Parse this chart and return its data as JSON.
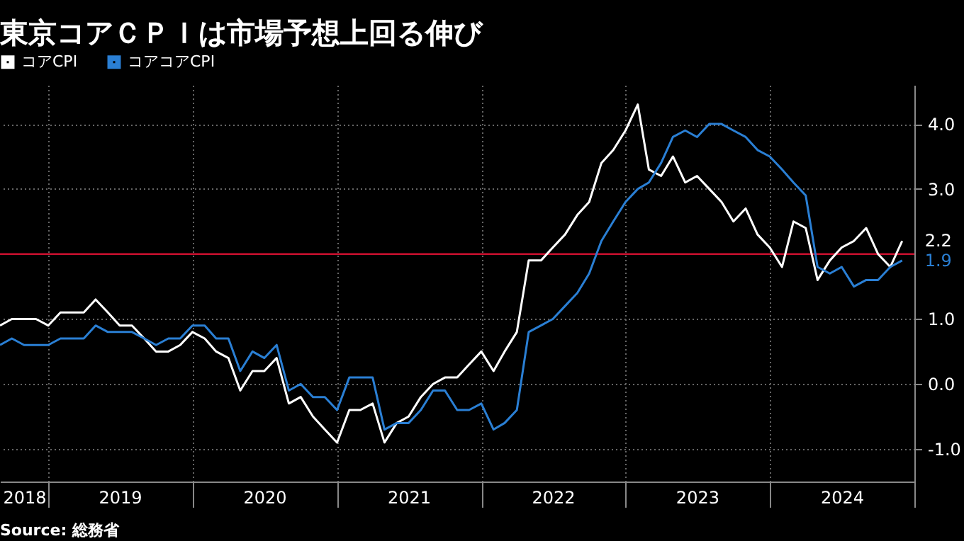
{
  "chart_data": {
    "type": "line",
    "title": "東京コアＣＰＩは市場予想上回る伸び",
    "annotations": [
      "Source: 総務省"
    ],
    "legend": "top left",
    "grid": true,
    "marker": "none",
    "line_style": "solid",
    "x": [
      "2018-08-31",
      "2018-09-30",
      "2018-10-31",
      "2018-11-30",
      "2018-12-31",
      "2019-01-31",
      "2019-02-28",
      "2019-03-31",
      "2019-04-30",
      "2019-05-31",
      "2019-06-30",
      "2019-07-31",
      "2019-08-31",
      "2019-09-30",
      "2019-10-31",
      "2019-11-30",
      "2019-12-31",
      "2020-01-31",
      "2020-02-29",
      "2020-03-31",
      "2020-04-30",
      "2020-05-31",
      "2020-06-30",
      "2020-07-31",
      "2020-08-31",
      "2020-09-30",
      "2020-10-31",
      "2020-11-30",
      "2020-12-31",
      "2021-01-31",
      "2021-02-28",
      "2021-03-31",
      "2021-04-30",
      "2021-05-31",
      "2021-06-30",
      "2021-07-31",
      "2021-08-31",
      "2021-09-30",
      "2021-10-31",
      "2021-11-30",
      "2021-12-31",
      "2022-01-31",
      "2022-02-28",
      "2022-03-31",
      "2022-04-30",
      "2022-05-31",
      "2022-06-30",
      "2022-07-31",
      "2022-08-31",
      "2022-09-30",
      "2022-10-31",
      "2022-11-30",
      "2022-12-31",
      "2023-01-31",
      "2023-02-28",
      "2023-03-31",
      "2023-04-30",
      "2023-05-31",
      "2023-06-30",
      "2023-07-31",
      "2023-08-31",
      "2023-09-30",
      "2023-10-31",
      "2023-11-30",
      "2023-12-31",
      "2024-01-31",
      "2024-02-29",
      "2024-03-31",
      "2024-04-30",
      "2024-05-31",
      "2024-06-30",
      "2024-07-31",
      "2024-08-31",
      "2024-09-30",
      "2024-10-31",
      "2024-11-30"
    ],
    "series": [
      {
        "name": "コアCPI",
        "color": "#ffffff",
        "values": [
          0.9,
          1.0,
          1.0,
          1.0,
          0.9,
          1.1,
          1.1,
          1.1,
          1.3,
          1.1,
          0.9,
          0.9,
          0.7,
          0.5,
          0.5,
          0.6,
          0.8,
          0.7,
          0.5,
          0.4,
          -0.1,
          0.2,
          0.2,
          0.4,
          -0.3,
          -0.2,
          -0.5,
          -0.7,
          -0.9,
          -0.4,
          -0.4,
          -0.3,
          -0.9,
          -0.6,
          -0.5,
          -0.2,
          0.0,
          0.1,
          0.1,
          0.3,
          0.5,
          0.2,
          0.5,
          0.8,
          1.9,
          1.9,
          2.1,
          2.3,
          2.6,
          2.8,
          3.4,
          3.6,
          3.9,
          4.3,
          3.3,
          3.2,
          3.5,
          3.1,
          3.2,
          3.0,
          2.8,
          2.5,
          2.7,
          2.3,
          2.1,
          1.8,
          2.5,
          2.4,
          1.6,
          1.9,
          2.1,
          2.2,
          2.4,
          2.0,
          1.8,
          2.2
        ],
        "value_labels": [
          null,
          null,
          null,
          null,
          null,
          null,
          null,
          null,
          null,
          null,
          null,
          null,
          null,
          null,
          null,
          null,
          null,
          null,
          null,
          null,
          null,
          null,
          null,
          null,
          null,
          null,
          null,
          null,
          null,
          null,
          null,
          null,
          null,
          null,
          null,
          null,
          null,
          null,
          null,
          null,
          null,
          null,
          null,
          null,
          null,
          null,
          null,
          null,
          null,
          null,
          null,
          null,
          null,
          null,
          null,
          null,
          null,
          null,
          null,
          null,
          null,
          null,
          null,
          null,
          null,
          null,
          null,
          null,
          null,
          null,
          null,
          null,
          null,
          null,
          null,
          "2.2"
        ]
      },
      {
        "name": "コアコアCPI",
        "color": "#2a7fd4",
        "values": [
          0.6,
          0.7,
          0.6,
          0.6,
          0.6,
          0.7,
          0.7,
          0.7,
          0.9,
          0.8,
          0.8,
          0.8,
          0.7,
          0.6,
          0.7,
          0.7,
          0.9,
          0.9,
          0.7,
          0.7,
          0.2,
          0.5,
          0.4,
          0.6,
          -0.1,
          0.0,
          -0.2,
          -0.2,
          -0.4,
          0.1,
          0.1,
          0.1,
          -0.7,
          -0.6,
          -0.6,
          -0.4,
          -0.1,
          -0.1,
          -0.4,
          -0.4,
          -0.3,
          -0.7,
          -0.6,
          -0.4,
          0.8,
          0.9,
          1.0,
          1.2,
          1.4,
          1.7,
          2.2,
          2.5,
          2.8,
          3.0,
          3.1,
          3.4,
          3.8,
          3.9,
          3.8,
          4.0,
          4.0,
          3.9,
          3.8,
          3.6,
          3.5,
          3.3,
          3.1,
          2.9,
          1.8,
          1.7,
          1.8,
          1.5,
          1.6,
          1.6,
          1.8,
          1.9
        ],
        "value_labels": [
          null,
          null,
          null,
          null,
          null,
          null,
          null,
          null,
          null,
          null,
          null,
          null,
          null,
          null,
          null,
          null,
          null,
          null,
          null,
          null,
          null,
          null,
          null,
          null,
          null,
          null,
          null,
          null,
          null,
          null,
          null,
          null,
          null,
          null,
          null,
          null,
          null,
          null,
          null,
          null,
          null,
          null,
          null,
          null,
          null,
          null,
          null,
          null,
          null,
          null,
          null,
          null,
          null,
          null,
          null,
          null,
          null,
          null,
          null,
          null,
          null,
          null,
          null,
          null,
          null,
          null,
          null,
          null,
          null,
          null,
          null,
          null,
          null,
          null,
          null,
          "1.9"
        ]
      }
    ],
    "xlim": [
      "2018-08-31",
      "2024-12-31"
    ],
    "xticks": [
      {
        "value": "2018-12-31",
        "label": null
      },
      {
        "value": "2019-12-31",
        "label": null
      },
      {
        "value": "2020-12-31",
        "label": null
      },
      {
        "value": "2021-12-31",
        "label": null
      },
      {
        "value": "2022-12-31",
        "label": null
      },
      {
        "value": "2023-12-31",
        "label": null
      },
      {
        "value": "2024-12-31",
        "label": null
      },
      {
        "value": "2018-10-31",
        "label": "2018"
      },
      {
        "value": "2019-06-30",
        "label": "2019"
      },
      {
        "value": "2020-06-30",
        "label": "2020"
      },
      {
        "value": "2021-06-30",
        "label": "2021"
      },
      {
        "value": "2022-06-30",
        "label": "2022"
      },
      {
        "value": "2023-06-30",
        "label": "2023"
      },
      {
        "value": "2024-06-30",
        "label": "2024"
      }
    ],
    "ylim": [
      -1.5,
      4.6
    ],
    "yticks": [
      {
        "value": -1,
        "label": "-1.0"
      },
      {
        "value": 0,
        "label": "0.0"
      },
      {
        "value": 1,
        "label": "1.0"
      },
      {
        "value": 3,
        "label": "3.0"
      },
      {
        "value": 4,
        "label": "4.0"
      }
    ],
    "ref_lines": [
      {
        "axis": "y",
        "value": 2.0,
        "color": "#c8102e"
      }
    ]
  }
}
